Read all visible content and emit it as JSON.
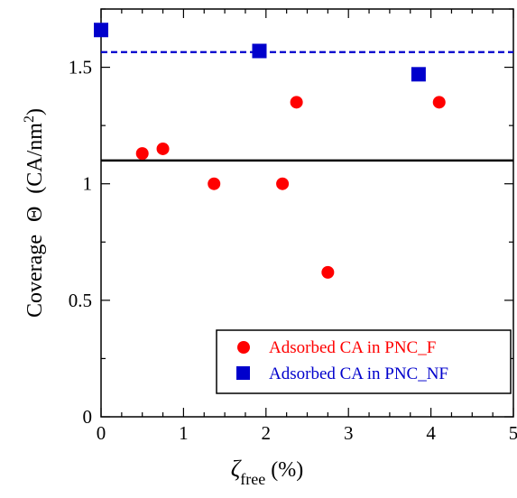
{
  "chart_data": {
    "type": "scatter",
    "xlabel": {
      "symbol": "ζ",
      "subscript": "free",
      "unit": "(%)"
    },
    "ylabel": {
      "prefix": "Coverage",
      "symbol": "Θ",
      "unit_start": "(CA/nm",
      "unit_exp": "2",
      "unit_end": ")"
    },
    "xlim": [
      0,
      5
    ],
    "ylim": [
      0,
      1.75
    ],
    "xticks": [
      0,
      1,
      2,
      3,
      4,
      5
    ],
    "xtick_labels": [
      "0",
      "1",
      "2",
      "3",
      "4",
      "5"
    ],
    "yticks": [
      0,
      0.5,
      1,
      1.5
    ],
    "ytick_labels": [
      "0",
      "0.5",
      "1",
      "1.5"
    ],
    "grid": false,
    "legend_position": "bottom-right",
    "series": [
      {
        "name": "Adsorbed CA in PNC_F",
        "marker": "circle",
        "color": "#ff0000",
        "x": [
          0.5,
          0.75,
          1.37,
          2.2,
          2.37,
          2.75,
          4.1
        ],
        "y": [
          1.13,
          1.15,
          1.0,
          1.0,
          1.35,
          0.62,
          1.35
        ]
      },
      {
        "name": "Adsorbed CA in PNC_NF",
        "marker": "square",
        "color": "#0000cc",
        "x": [
          0.0,
          1.92,
          3.85
        ],
        "y": [
          1.66,
          1.57,
          1.47
        ]
      }
    ],
    "reference_lines": [
      {
        "y": 1.1,
        "style": "solid",
        "color": "#000000"
      },
      {
        "y": 1.565,
        "style": "dashed",
        "color": "#0000cc"
      }
    ]
  }
}
